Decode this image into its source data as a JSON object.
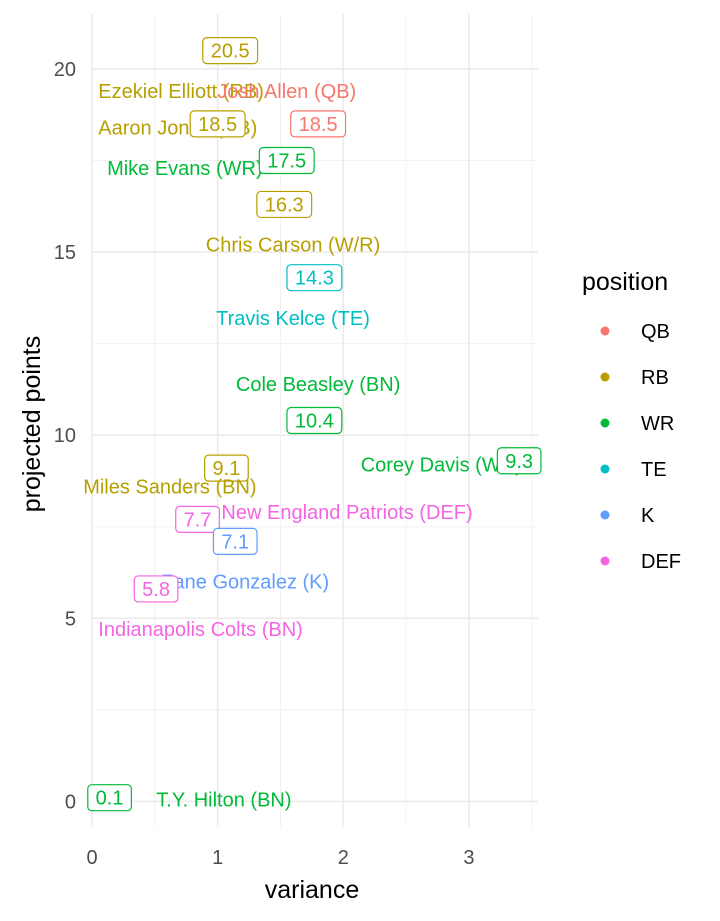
{
  "chart_data": {
    "type": "scatter",
    "xlabel": "variance",
    "ylabel": "projected points",
    "xlim": [
      0,
      3.55
    ],
    "ylim": [
      -0.7,
      21.5
    ],
    "x_ticks": [
      0,
      1,
      2,
      3
    ],
    "y_ticks": [
      0,
      5,
      10,
      15,
      20
    ],
    "x_tick_labels": [
      "0",
      "1",
      "2",
      "3"
    ],
    "y_tick_labels": [
      "0",
      "5",
      "10",
      "15",
      "20"
    ],
    "grid": true,
    "legend": {
      "title": "position",
      "placement": "right",
      "entries": [
        {
          "label": "QB",
          "color": "#F8766D"
        },
        {
          "label": "RB",
          "color": "#B79F00"
        },
        {
          "label": "WR",
          "color": "#00BA38"
        },
        {
          "label": "TE",
          "color": "#00BFC4"
        },
        {
          "label": "K",
          "color": "#619CFF"
        },
        {
          "label": "DEF",
          "color": "#F564E3"
        }
      ]
    },
    "points": [
      {
        "value_label": "20.5",
        "x": 1.1,
        "y": 20.5,
        "position": "RB"
      },
      {
        "name_label": "Ezekiel Elliott (RB)",
        "x": 0.05,
        "y": 19.4,
        "position": "RB"
      },
      {
        "name_label": "Josh Allen (QB)",
        "x": 1.55,
        "y": 19.4,
        "position": "QB"
      },
      {
        "name_label": "Aaron Jones (RB)",
        "x": 0.05,
        "y": 18.4,
        "position": "RB"
      },
      {
        "value_label": "18.5",
        "x": 1.0,
        "y": 18.5,
        "position": "RB"
      },
      {
        "value_label": "18.5",
        "x": 1.8,
        "y": 18.5,
        "position": "QB"
      },
      {
        "name_label": "Mike Evans (WR)",
        "x": 0.12,
        "y": 17.3,
        "position": "WR"
      },
      {
        "value_label": "17.5",
        "x": 1.55,
        "y": 17.5,
        "position": "WR"
      },
      {
        "value_label": "16.3",
        "x": 1.53,
        "y": 16.3,
        "position": "RB"
      },
      {
        "name_label": "Chris Carson (W/R)",
        "x": 1.6,
        "y": 15.2,
        "position": "RB"
      },
      {
        "value_label": "14.3",
        "x": 1.77,
        "y": 14.3,
        "position": "TE"
      },
      {
        "name_label": "Travis Kelce (TE)",
        "x": 1.6,
        "y": 13.2,
        "position": "TE"
      },
      {
        "name_label": "Cole Beasley (BN)",
        "x": 1.8,
        "y": 11.4,
        "position": "WR"
      },
      {
        "value_label": "10.4",
        "x": 1.77,
        "y": 10.4,
        "position": "WR"
      },
      {
        "name_label": "Corey Davis (WR)",
        "x": 2.78,
        "y": 9.2,
        "position": "WR"
      },
      {
        "value_label": "9.3",
        "x": 3.4,
        "y": 9.3,
        "position": "WR"
      },
      {
        "value_label": "9.1",
        "x": 1.07,
        "y": 9.1,
        "position": "RB"
      },
      {
        "name_label": "Miles Sanders (BN)",
        "x": 0.62,
        "y": 8.6,
        "position": "RB"
      },
      {
        "name_label": "New England Patriots (DEF)",
        "x": 2.03,
        "y": 7.9,
        "position": "DEF"
      },
      {
        "value_label": "7.7",
        "x": 0.84,
        "y": 7.7,
        "position": "DEF"
      },
      {
        "value_label": "7.1",
        "x": 1.14,
        "y": 7.1,
        "position": "K"
      },
      {
        "name_label": "Zane Gonzalez (K)",
        "x": 1.22,
        "y": 6.0,
        "position": "K"
      },
      {
        "value_label": "5.8",
        "x": 0.51,
        "y": 5.8,
        "position": "DEF"
      },
      {
        "name_label": "Indianapolis Colts (BN)",
        "x": 0.05,
        "y": 4.7,
        "position": "DEF"
      },
      {
        "value_label": "0.1",
        "x": 0.14,
        "y": 0.1,
        "position": "WR"
      },
      {
        "name_label": "T.Y. Hilton (BN)",
        "x": 1.05,
        "y": 0.05,
        "position": "WR"
      }
    ]
  }
}
